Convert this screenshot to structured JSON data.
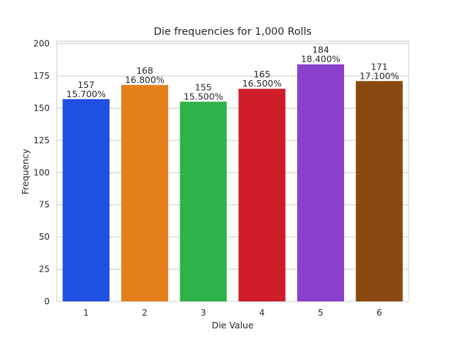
{
  "chart_data": {
    "type": "bar",
    "title": "Die frequencies for 1,000 Rolls",
    "xlabel": "Die Value",
    "ylabel": "Frequency",
    "categories": [
      "1",
      "2",
      "3",
      "4",
      "5",
      "6"
    ],
    "values": [
      157,
      168,
      155,
      165,
      184,
      171
    ],
    "percent_labels": [
      "15.700%",
      "16.800%",
      "15.500%",
      "16.500%",
      "18.400%",
      "17.100%"
    ],
    "colors": [
      "#1f4fe3",
      "#e57f1b",
      "#2db34a",
      "#cf1d29",
      "#8a40cc",
      "#8a4a0f"
    ],
    "ylim": [
      0,
      202
    ],
    "yticks": [
      0,
      25,
      50,
      75,
      100,
      125,
      150,
      175,
      200
    ],
    "grid": "horizontal",
    "legend": "none"
  }
}
